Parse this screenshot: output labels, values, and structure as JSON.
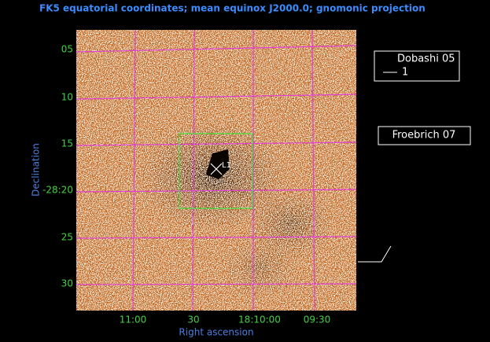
{
  "header": {
    "title": "FK5 equatorial coordinates; mean equinox J2000.0; gnomonic projection"
  },
  "axes": {
    "y_title": "Declination",
    "x_title": "Right ascension",
    "y_labels": [
      "05",
      "10",
      "15",
      "-28:20",
      "25",
      "30"
    ],
    "x_labels": [
      "11:00",
      "30",
      "18:10:00",
      "09:30"
    ]
  },
  "overlays": {
    "source_label": "L1",
    "legend": [
      {
        "name": "Dobashi 05",
        "item": "1"
      },
      {
        "name": "Froebrich 07"
      }
    ]
  }
}
